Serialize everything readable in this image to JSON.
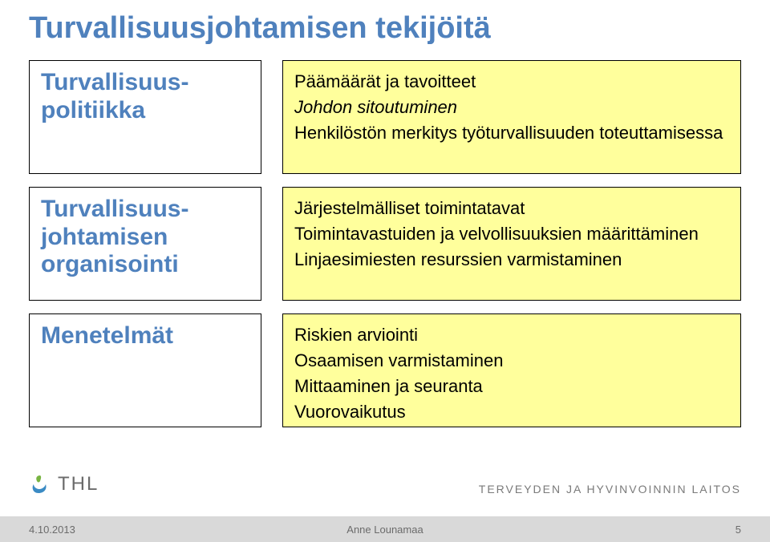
{
  "title": "Turvallisuusjohtamisen tekijöitä",
  "title_color": "#4f81bd",
  "accent_color": "#4f81bd",
  "box_border_color": "#000000",
  "yellow_bg": "#ffff9c",
  "left": {
    "row1": "Turvallisuus-\npolitiikka",
    "row2": "Turvallisuus-\njohtamisen\norganisointi",
    "row3": "Menetelmät"
  },
  "right": {
    "row1": [
      "Päämäärät ja tavoitteet",
      "Johdon sitoutuminen",
      "Henkilöstön merkitys työturvallisuuden toteuttamisessa"
    ],
    "row1_italic": [
      false,
      true,
      false
    ],
    "row2": [
      "Järjestelmälliset toimintatavat",
      "Toimintavastuiden ja velvollisuuksien määrittäminen",
      "Linjaesimiesten resurssien varmistaminen"
    ],
    "row3": [
      "Riskien arviointi",
      "Osaamisen varmistaminen",
      "Mittaaminen ja seuranta",
      "Vuorovaikutus"
    ]
  },
  "footer": {
    "logo_text": "THL",
    "org": "TERVEYDEN JA HYVINVOINNIN LAITOS",
    "date": "4.10.2013",
    "author": "Anne Lounamaa",
    "page": "5"
  },
  "logo_colors": {
    "leaf": "#78b441",
    "swirl": "#3b8bc4"
  },
  "typography": {
    "title_fontsize": 38,
    "left_label_fontsize": 30,
    "right_line_fontsize": 22,
    "footer_fontsize": 13
  }
}
